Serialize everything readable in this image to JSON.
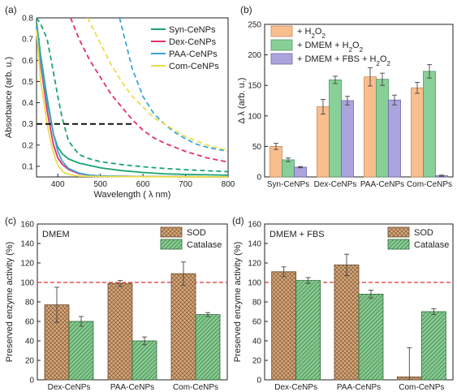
{
  "colors": {
    "syn": "#1aa36f",
    "dex": "#e0316f",
    "paa": "#3aa7d8",
    "com": "#ecdc4a",
    "h2o2": "#f8be8e",
    "dmem_h2o2": "#88cf98",
    "dmem_fbs_h2o2": "#aba4dd",
    "sod": "#d8a878",
    "catalase": "#85c98f",
    "refline": "#e23030",
    "black_dash": "#111111"
  },
  "chart_data": [
    {
      "panel": "(a)",
      "type": "line",
      "xlabel": "Wavelength ( λ nm)",
      "ylabel": "Absorbance (arb. u.)",
      "xlim": [
        350,
        800
      ],
      "ylim": [
        0.05,
        0.8
      ],
      "xticks": [
        "400",
        "500",
        "600",
        "700",
        "800"
      ],
      "yticks": [
        "0.1",
        "0.2",
        "0.3",
        "0.4",
        "0.5",
        "0.6",
        "0.7",
        "0.8"
      ],
      "grid": false,
      "legend_position": "top-right",
      "legend": [
        "Syn-CeNPs",
        "Dex-CeNPs",
        "PAA-CeNPs",
        "Com-CeNPs"
      ],
      "series": [
        {
          "name": "Syn-CeNPs",
          "style": "solid",
          "x": [
            350,
            360,
            375,
            390,
            400,
            410,
            425,
            450,
            500,
            550,
            600,
            650,
            700,
            750,
            800
          ],
          "y": [
            0.78,
            0.62,
            0.42,
            0.25,
            0.19,
            0.16,
            0.135,
            0.115,
            0.093,
            0.08,
            0.071,
            0.065,
            0.062,
            0.06,
            0.058
          ]
        },
        {
          "name": "Dex-CeNPs",
          "style": "solid",
          "x": [
            350,
            360,
            375,
            390,
            400,
            410,
            425,
            450,
            475,
            500,
            550,
            600,
            700,
            800
          ],
          "y": [
            0.76,
            0.58,
            0.36,
            0.2,
            0.14,
            0.11,
            0.085,
            0.065,
            0.058,
            0.055,
            0.053,
            0.052,
            0.051,
            0.05
          ]
        },
        {
          "name": "PAA-CeNPs",
          "style": "solid",
          "x": [
            350,
            360,
            375,
            390,
            400,
            410,
            425,
            450,
            475,
            500,
            550,
            600,
            700,
            800
          ],
          "y": [
            0.76,
            0.6,
            0.4,
            0.25,
            0.17,
            0.125,
            0.09,
            0.068,
            0.058,
            0.055,
            0.053,
            0.052,
            0.051,
            0.05
          ]
        },
        {
          "name": "Com-CeNPs",
          "style": "solid",
          "x": [
            350,
            360,
            375,
            385,
            395,
            405,
            415,
            430,
            450,
            500,
            600,
            800
          ],
          "y": [
            0.74,
            0.5,
            0.3,
            0.2,
            0.13,
            0.09,
            0.07,
            0.06,
            0.054,
            0.052,
            0.051,
            0.05
          ]
        },
        {
          "name": "Syn-CeNPs",
          "style": "dashed",
          "x": [
            350,
            360,
            375,
            390,
            400,
            410,
            425,
            450,
            475,
            500,
            550,
            600,
            650,
            700,
            750,
            800
          ],
          "y": [
            0.8,
            0.77,
            0.7,
            0.54,
            0.43,
            0.33,
            0.22,
            0.155,
            0.135,
            0.122,
            0.108,
            0.098,
            0.09,
            0.084,
            0.079,
            0.075
          ]
        },
        {
          "name": "Dex-CeNPs",
          "style": "dashed",
          "x": [
            430,
            450,
            475,
            500,
            525,
            550,
            575,
            600,
            625,
            650,
            700,
            750,
            800
          ],
          "y": [
            0.8,
            0.7,
            0.6,
            0.52,
            0.44,
            0.38,
            0.32,
            0.27,
            0.235,
            0.21,
            0.17,
            0.14,
            0.12
          ]
        },
        {
          "name": "PAA-CeNPs",
          "style": "dashed",
          "x": [
            545,
            560,
            575,
            600,
            625,
            650,
            675,
            700,
            725,
            750,
            800
          ],
          "y": [
            0.8,
            0.68,
            0.56,
            0.43,
            0.35,
            0.3,
            0.26,
            0.23,
            0.205,
            0.19,
            0.17
          ]
        },
        {
          "name": "Com-CeNPs",
          "style": "dashed",
          "x": [
            470,
            500,
            525,
            550,
            575,
            600,
            625,
            650,
            675,
            700,
            750,
            800
          ],
          "y": [
            0.8,
            0.68,
            0.58,
            0.5,
            0.43,
            0.38,
            0.33,
            0.3,
            0.27,
            0.24,
            0.2,
            0.175
          ]
        },
        {
          "name": "",
          "style": "black-dashed",
          "x": [
            350,
            580
          ],
          "y": [
            0.3,
            0.3
          ]
        }
      ]
    },
    {
      "panel": "(b)",
      "type": "bar",
      "ylabel": "Δ λ (arb. u.)",
      "ylim": [
        0,
        250
      ],
      "yticks": [
        "0",
        "50",
        "100",
        "150",
        "200",
        "250"
      ],
      "grid": false,
      "legend_position": "top-left",
      "categories": [
        "Syn-CeNPs",
        "Dex-CeNPs",
        "PAA-CeNPs",
        "Com-CeNPs"
      ],
      "series": [
        {
          "name": "+ H₂O₂",
          "values": [
            50,
            115,
            164,
            146
          ],
          "errors": [
            5,
            12,
            15,
            9
          ]
        },
        {
          "name": "+ DMEM + H₂O₂",
          "values": [
            28,
            159,
            160,
            173
          ],
          "errors": [
            3,
            6,
            10,
            11
          ]
        },
        {
          "name": "+ DMEM + FBS + H₂O₂",
          "values": [
            16,
            125,
            126,
            2
          ],
          "errors": [
            1,
            7,
            8,
            1
          ]
        }
      ]
    },
    {
      "panel": "(c)",
      "type": "bar",
      "title": "DMEM",
      "ylabel": "Preserved enzyme activity (%)",
      "ylim": [
        0,
        160
      ],
      "yticks": [
        "0",
        "20",
        "40",
        "60",
        "80",
        "100",
        "120",
        "140",
        "160"
      ],
      "grid": false,
      "legend_position": "top-right",
      "reference_line": 100,
      "categories": [
        "Dex-CeNPs",
        "PAA-CeNPs",
        "Com-CeNPs"
      ],
      "series": [
        {
          "name": "SOD",
          "values": [
            77,
            99,
            109
          ],
          "errors": [
            18,
            3,
            12
          ]
        },
        {
          "name": "Catalase",
          "values": [
            60,
            40,
            67
          ],
          "errors": [
            5,
            4,
            2
          ]
        }
      ]
    },
    {
      "panel": "(d)",
      "type": "bar",
      "title": "DMEM + FBS",
      "ylabel": "Preserved enzyme activity (%)",
      "ylim": [
        0,
        160
      ],
      "yticks": [
        "0",
        "20",
        "40",
        "60",
        "80",
        "100",
        "120",
        "140",
        "160"
      ],
      "grid": false,
      "legend_position": "top-right",
      "reference_line": 100,
      "categories": [
        "Dex-CeNPs",
        "PAA-CeNPs",
        "Com-CeNPs"
      ],
      "series": [
        {
          "name": "SOD",
          "values": [
            111,
            118,
            3
          ],
          "errors": [
            5,
            11,
            30
          ]
        },
        {
          "name": "Catalase",
          "values": [
            102,
            88,
            70
          ],
          "errors": [
            3,
            4,
            3
          ]
        }
      ]
    }
  ]
}
